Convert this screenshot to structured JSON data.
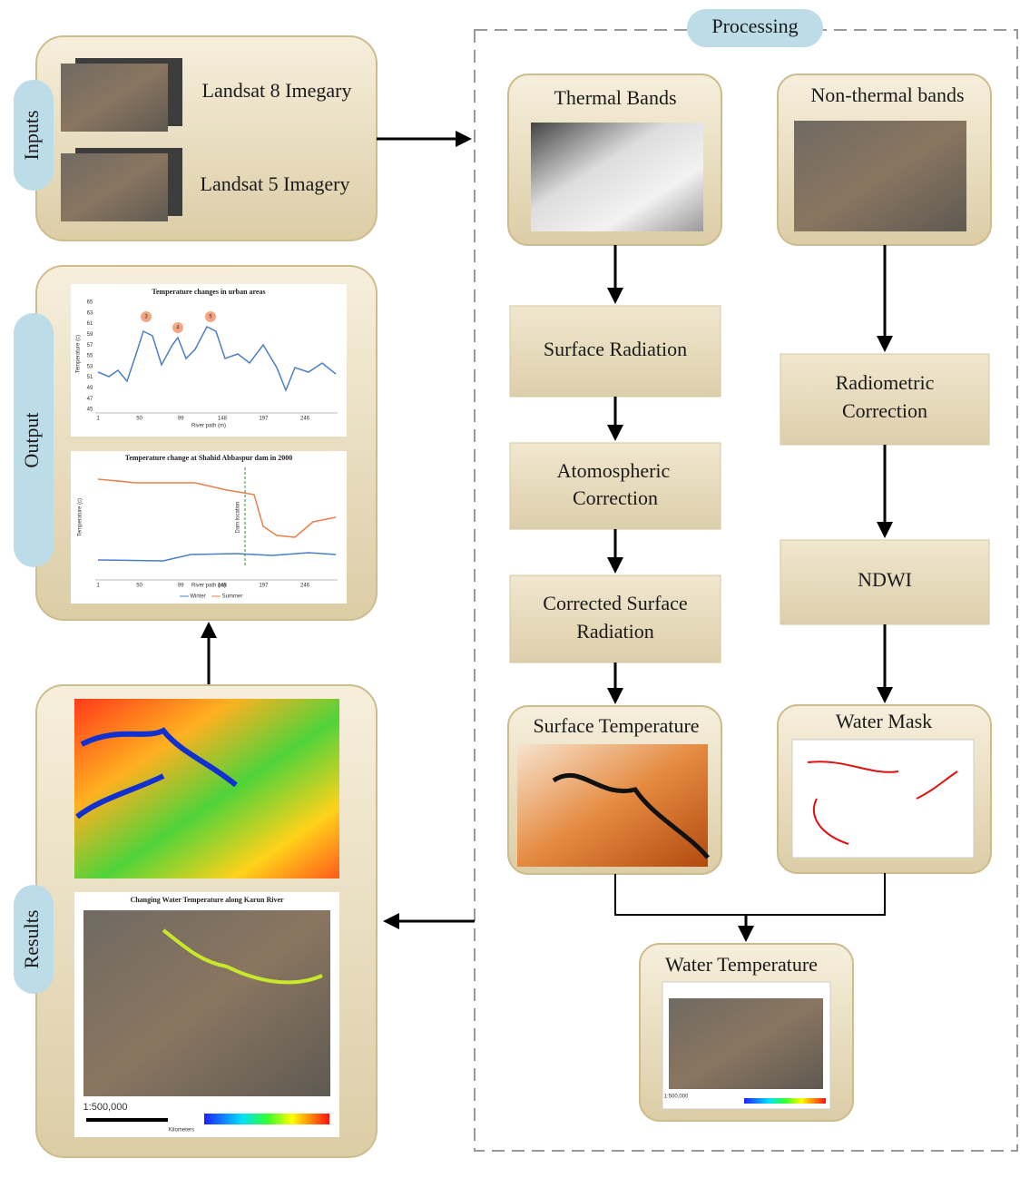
{
  "inputs": {
    "label": "Inputs",
    "items": [
      "Landsat 8 Imegary",
      "Landsat 5 Imagery"
    ]
  },
  "processing": {
    "label": "Processing",
    "thermal_bands": "Thermal Bands",
    "non_thermal_bands": "Non-thermal bands",
    "surface_radiation": "Surface Radiation",
    "atmospheric_correction": [
      "Atomospheric",
      "Correction"
    ],
    "corrected_surface_radiation": [
      "Corrected Surface",
      "Radiation"
    ],
    "surface_temperature": "Surface Temperature",
    "radiometric_correction": [
      "Radiometric",
      "Correction"
    ],
    "ndwi": "NDWI",
    "water_mask": "Water Mask",
    "water_temperature": "Water Temperature",
    "water_temperature_scale": "1:500,000"
  },
  "output": {
    "label": "Output",
    "charts": [
      {
        "title": "Temperature changes in urban areas",
        "y_label": "Temperature (c)",
        "x_label": "River path (m)",
        "x_ticks": [
          "1",
          "50",
          "99",
          "148",
          "197",
          "246"
        ],
        "y_ticks": [
          "65",
          "63",
          "61",
          "59",
          "57",
          "55",
          "53",
          "51",
          "49",
          "47",
          "45"
        ],
        "markers": [
          "3",
          "4",
          "5"
        ]
      },
      {
        "title": "Temperature change at Shahid Abbaspur dam in 2000",
        "y_label": "Temperature (c)",
        "x_label": "River path (m)",
        "x_ticks": [
          "1",
          "50",
          "99",
          "148",
          "197",
          "246"
        ],
        "annotation": "Dam location",
        "legend": [
          "Winter",
          "Summer"
        ]
      }
    ]
  },
  "results": {
    "label": "Results",
    "map": {
      "title": "Changing Water Temperature along Karun River",
      "scale": "1:500,000",
      "units": "Kilometers"
    }
  }
}
